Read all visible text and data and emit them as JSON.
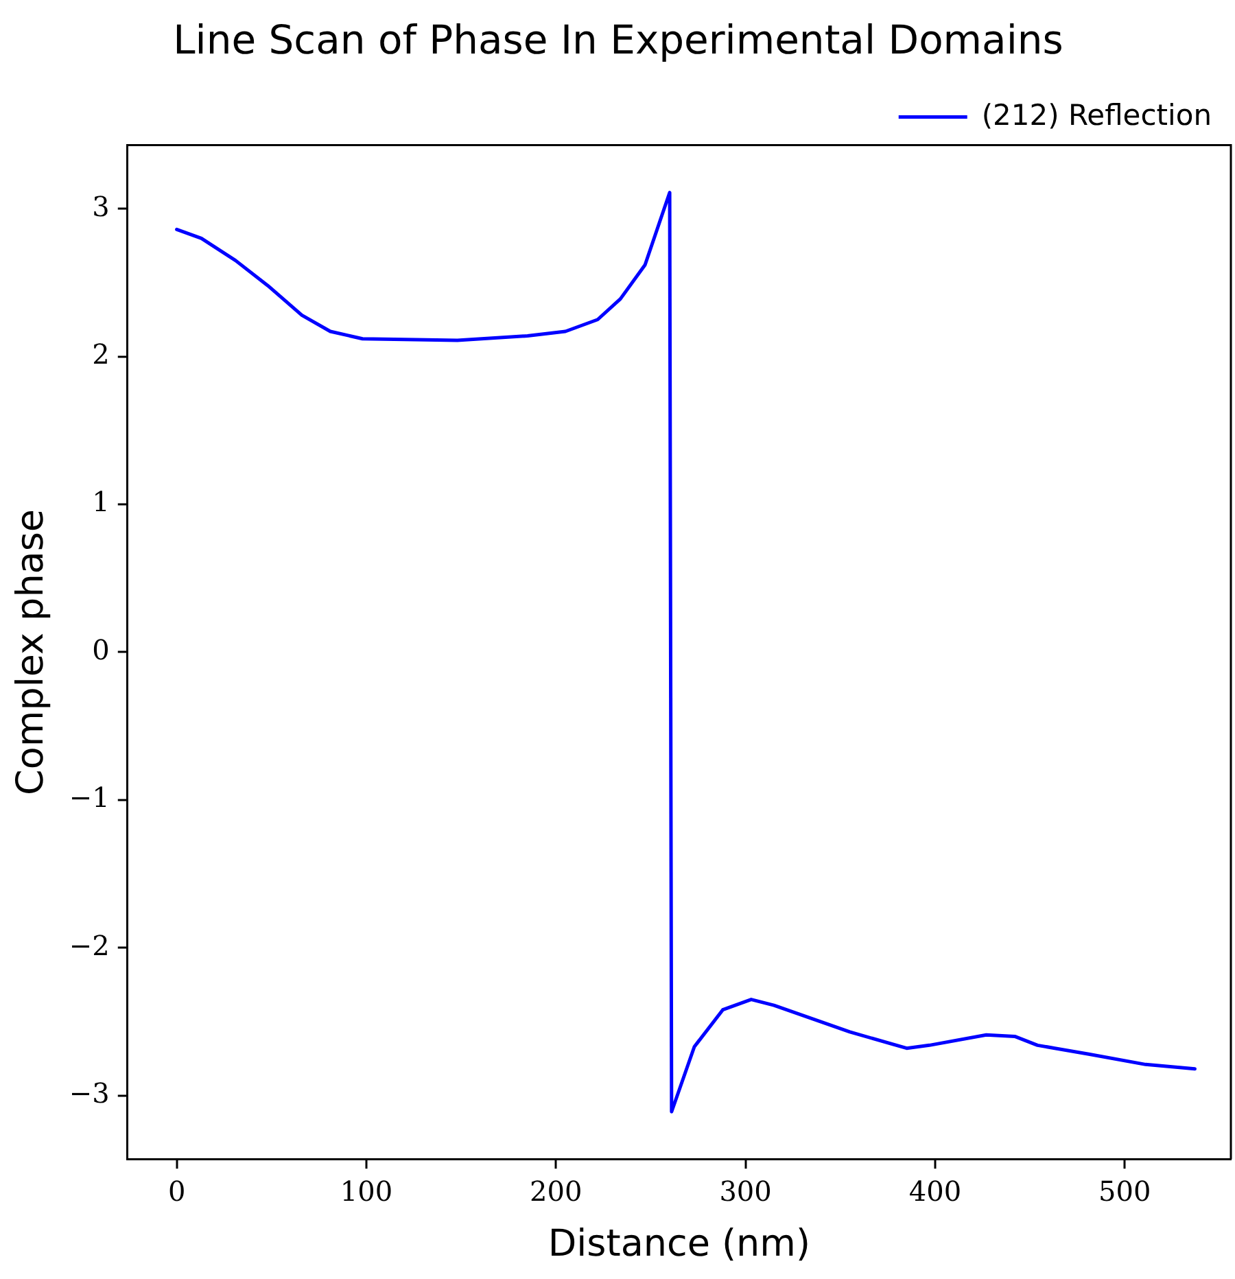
{
  "chart_data": {
    "type": "line",
    "title": "Line Scan of Phase In Experimental Domains",
    "xlabel": "Distance (nm)",
    "ylabel": "Complex phase",
    "xlim": [
      -26,
      556
    ],
    "xticks": [
      0,
      100,
      200,
      300,
      400,
      500
    ],
    "ylim": [
      -3.43,
      3.43
    ],
    "yticks": [
      {
        "value": -3,
        "label": "−3"
      },
      {
        "value": -2,
        "label": "−2"
      },
      {
        "value": -1,
        "label": "−1"
      },
      0,
      1,
      2,
      3
    ],
    "grid": false,
    "legend": "top right",
    "marker": "none",
    "line_style": "solid",
    "series": [
      {
        "name": "(212) Reflection",
        "color": "#0000ff",
        "x": [
          0,
          13,
          31,
          48,
          66,
          81,
          98,
          148,
          185,
          205,
          222,
          234,
          247,
          260,
          261,
          273,
          288,
          303,
          315,
          355,
          385,
          397,
          427,
          442,
          454,
          481,
          511,
          537
        ],
        "values": [
          2.86,
          2.8,
          2.65,
          2.48,
          2.28,
          2.17,
          2.12,
          2.11,
          2.14,
          2.17,
          2.25,
          2.39,
          2.62,
          3.11,
          -3.11,
          -2.67,
          -2.42,
          -2.35,
          -2.39,
          -2.57,
          -2.68,
          -2.66,
          -2.59,
          -2.6,
          -2.66,
          -2.72,
          -2.79,
          -2.82
        ]
      }
    ]
  }
}
